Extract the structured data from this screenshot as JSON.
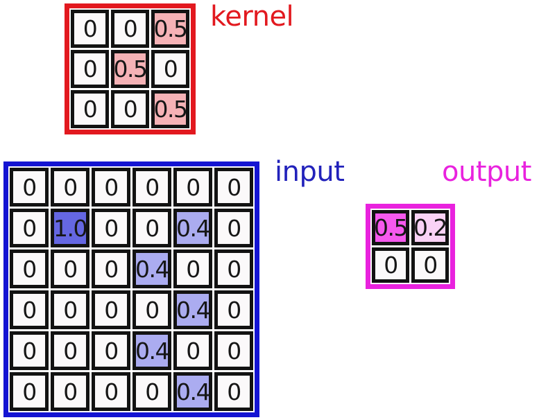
{
  "figure": {
    "title": "convolution kernel-input-output diagram",
    "colors": {
      "kernel_accent": "#e2191f",
      "kernel_cell_highlight": "#f5b2b6",
      "input_accent": "#1414d2",
      "input_label": "#2222bb",
      "input_cell_strong": "#6567e2",
      "input_cell_light": "#abacf0",
      "output_accent": "#e922de",
      "output_cell_strong": "#f659ee",
      "output_cell_light": "#fad2f6",
      "cell_background": "#fbf9fa",
      "cell_border": "#121212"
    }
  },
  "grids": {
    "kernel": {
      "label": "kernel",
      "label_color": "#e2191f",
      "border_color": "#e2191f",
      "cells": [
        [
          {
            "t": "0"
          },
          {
            "t": "0"
          },
          {
            "t": "0.5",
            "bg": "#f5b2b6"
          }
        ],
        [
          {
            "t": "0"
          },
          {
            "t": "0.5",
            "bg": "#f5b2b6"
          },
          {
            "t": "0"
          }
        ],
        [
          {
            "t": "0"
          },
          {
            "t": "0"
          },
          {
            "t": "0.5",
            "bg": "#f5b2b6"
          }
        ]
      ]
    },
    "input": {
      "label": "input",
      "label_color": "#2222bb",
      "border_color": "#1414d2",
      "cells": [
        [
          {
            "t": "0"
          },
          {
            "t": "0"
          },
          {
            "t": "0"
          },
          {
            "t": "0"
          },
          {
            "t": "0"
          },
          {
            "t": "0"
          }
        ],
        [
          {
            "t": "0"
          },
          {
            "t": "1.0",
            "bg": "#6567e2"
          },
          {
            "t": "0"
          },
          {
            "t": "0"
          },
          {
            "t": "0.4",
            "bg": "#abacf0"
          },
          {
            "t": "0"
          }
        ],
        [
          {
            "t": "0"
          },
          {
            "t": "0"
          },
          {
            "t": "0"
          },
          {
            "t": "0.4",
            "bg": "#abacf0"
          },
          {
            "t": "0"
          },
          {
            "t": "0"
          }
        ],
        [
          {
            "t": "0"
          },
          {
            "t": "0"
          },
          {
            "t": "0"
          },
          {
            "t": "0"
          },
          {
            "t": "0.4",
            "bg": "#abacf0"
          },
          {
            "t": "0"
          }
        ],
        [
          {
            "t": "0"
          },
          {
            "t": "0"
          },
          {
            "t": "0"
          },
          {
            "t": "0.4",
            "bg": "#abacf0"
          },
          {
            "t": "0"
          },
          {
            "t": "0"
          }
        ],
        [
          {
            "t": "0"
          },
          {
            "t": "0"
          },
          {
            "t": "0"
          },
          {
            "t": "0"
          },
          {
            "t": "0.4",
            "bg": "#abacf0"
          },
          {
            "t": "0"
          }
        ]
      ]
    },
    "output": {
      "label": "output",
      "label_color": "#e922de",
      "border_color": "#e922de",
      "cells": [
        [
          {
            "t": "0.5",
            "bg": "#f659ee"
          },
          {
            "t": "0.2",
            "bg": "#fad2f6"
          }
        ],
        [
          {
            "t": "0"
          },
          {
            "t": "0"
          }
        ]
      ]
    }
  }
}
